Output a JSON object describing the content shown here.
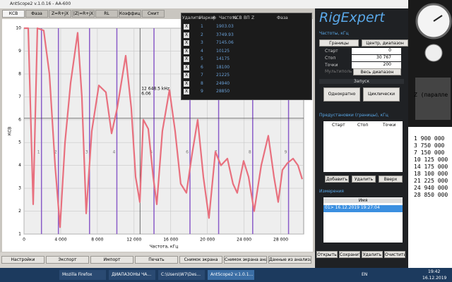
{
  "window_title": "AntScope2 v.1.0.16 - AA-600",
  "tabs": [
    "КСВ",
    "Фаза",
    "Z=R+jX",
    "|Z|=R+jX",
    "RL",
    "Коэффициент",
    "Смит"
  ],
  "chart_data": {
    "type": "line",
    "y_label": "КСВ",
    "x_label": "Частота, кГц",
    "color": "#e8707e",
    "x": [
      0,
      460,
      1000,
      1460,
      2150,
      2770,
      3390,
      3930,
      4470,
      5080,
      5850,
      6310,
      6780,
      7390,
      8160,
      8930,
      9550,
      10160,
      11090,
      11700,
      12170,
      12630,
      13010,
      13550,
      14090,
      14480,
      15090,
      15860,
      16480,
      17090,
      17710,
      18330,
      18940,
      19560,
      20170,
      20870,
      21480,
      22180,
      22790,
      23250,
      23950,
      24490,
      25100,
      25870,
      26640,
      27260,
      27720,
      28180,
      28720,
      29340,
      29880,
      30340
    ],
    "values": [
      10,
      10,
      2.3,
      10,
      9.9,
      8,
      4,
      1.3,
      5,
      7.6,
      9.8,
      7,
      1.9,
      5.5,
      7.5,
      7.2,
      5.4,
      6.5,
      8.8,
      6.5,
      3.5,
      2.4,
      6.0,
      5.6,
      3.5,
      2.3,
      5.5,
      7.3,
      5.5,
      3.2,
      2.8,
      4.5,
      6.0,
      3.5,
      1.7,
      4.6,
      4.0,
      4.3,
      3.2,
      2.8,
      4.2,
      3.5,
      2.0,
      4.0,
      5.3,
      3.5,
      2.4,
      3.8,
      4.1,
      4.3,
      4.0,
      3.4
    ],
    "xlim": [
      0,
      30500
    ],
    "xticks": [
      0,
      {
        "value": 4000,
        "label": "4 000"
      },
      {
        "value": 8000,
        "label": "8 000"
      },
      {
        "value": 12000,
        "label": "12 000"
      },
      {
        "value": 16000,
        "label": "16 000"
      },
      {
        "value": 20000,
        "label": "20 000"
      },
      {
        "value": 24000,
        "label": "24 000"
      },
      {
        "value": 28000,
        "label": "28 000"
      }
    ],
    "ylim": [
      1,
      10
    ],
    "yticks": [
      1,
      2,
      3,
      4,
      5,
      6,
      7,
      8,
      9,
      10
    ],
    "grid": true,
    "markers": [
      1903.03,
      3749.93,
      7145.06,
      10125,
      14175,
      18100,
      21225,
      24940,
      28850
    ],
    "marker_labels": [
      "1",
      "2",
      "3",
      "4",
      "5",
      "6",
      "7",
      "8",
      "9"
    ],
    "marker_color": "#8a5cc8",
    "cursor": {
      "x": 12648.5,
      "y": 6.06,
      "x_label": "12 648.5 kHz",
      "y_label": "6.06"
    }
  },
  "marker_table": {
    "headers": [
      "Удалить",
      "Маркер",
      "#",
      "Частота",
      "КСВ",
      "ВП",
      "Z",
      "Фаза"
    ],
    "delete": "X"
  },
  "bottom_buttons": [
    "Настройки",
    "Экспорт",
    "Импорт",
    "Печать",
    "Снимок экрана",
    "Снимок экрана анализатора",
    "Данные из анализатора"
  ],
  "panel": {
    "logo": "RigExpert",
    "freq_title": "Частоты, кГц",
    "mode_buttons": [
      "Границы",
      "Центр, диапазон"
    ],
    "fields": [
      {
        "label": "Старт",
        "value": "0"
      },
      {
        "label": "Стоп",
        "value": "30 767"
      },
      {
        "label": "Точки",
        "value": "200"
      }
    ],
    "checkbox": "Мультиполь",
    "full_range": "Весь диапазон",
    "run_title": "Запуск",
    "run_buttons": [
      "Однократно",
      "Циклически"
    ],
    "presets_title": "Предустановки (границы), кГц",
    "presets_headers": [
      "Старт",
      "Стоп",
      "Точки"
    ],
    "presets_buttons": [
      "Добавить",
      "Удалить",
      "Вверх"
    ],
    "measurements_title": "Измерения",
    "meas_header": "Имя",
    "meas_row": "01> 16.12.2019 19:27:04",
    "meas_buttons": [
      "Открыть",
      "Сохранить",
      "Удалить",
      "Очистить"
    ]
  },
  "desktop": {
    "heading": "Z (паралле",
    "list": [
      "1 900 000",
      "3 750 000",
      "7 150 000",
      "10 125 000",
      "14 175 000",
      "18 100 000",
      "21 225 000",
      "24 940 000",
      "28 850 000"
    ]
  },
  "taskbar": {
    "items": [
      "Mozilla Firefox",
      "ДИАПАЗОНЫ ЧА...",
      "C:\\Users\\W7\\Des...",
      "AntScope2 v.1.0.1..."
    ],
    "lang": "EN",
    "time": "19:42",
    "date": "16.12.2019"
  }
}
